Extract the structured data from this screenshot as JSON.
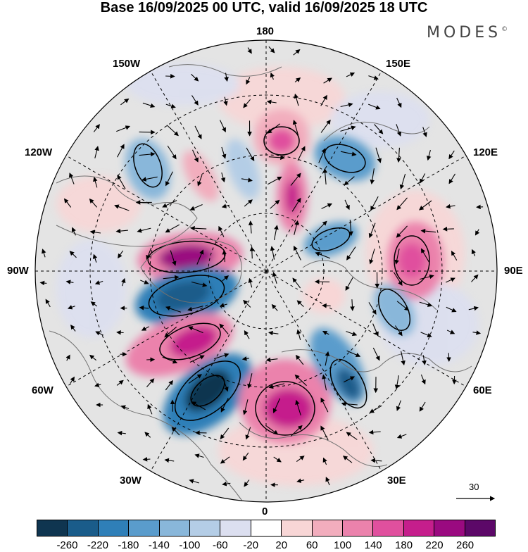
{
  "title": "Base 16/09/2025 00 UTC, valid 16/09/2025 18 UTC",
  "brand": {
    "name": "MODES",
    "mark": "©"
  },
  "map": {
    "projection": "north polar stereographic",
    "longitude_labels": {
      "top": "180",
      "bottom": "0",
      "left": "90W",
      "right": "90E",
      "upper_left_1": "150W",
      "upper_left_2": "120W",
      "upper_right_1": "150E",
      "upper_right_2": "120E",
      "lower_left_1": "60W",
      "lower_left_2": "30W",
      "lower_right_1": "60E",
      "lower_right_2": "30E"
    },
    "background_color": "#e4e4e4",
    "coast_color": "#707070"
  },
  "reference_vector": {
    "value": "30"
  },
  "colorbar": {
    "colors": [
      "#0f3550",
      "#1a5c8a",
      "#2f7fb8",
      "#5a9ccc",
      "#89b7da",
      "#b4cde6",
      "#dcdff0",
      "#ffffff",
      "#f8d6d6",
      "#f2adbd",
      "#eb82ac",
      "#e0509e",
      "#c51e8c",
      "#9a0a80",
      "#5c0868"
    ],
    "tick_labels": [
      "-260",
      "-220",
      "-180",
      "-140",
      "-100",
      "-60",
      "-20",
      "20",
      "60",
      "100",
      "140",
      "180",
      "220",
      "260"
    ]
  }
}
